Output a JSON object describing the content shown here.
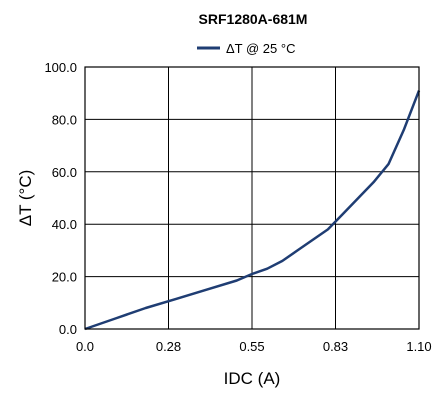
{
  "chart_data": {
    "type": "line",
    "title": "SRF1280A-681M",
    "xlabel": "IDC (A)",
    "ylabel": "ΔT (°C)",
    "xlim": [
      0,
      1.1
    ],
    "ylim": [
      0,
      100
    ],
    "x_ticks": [
      "0.0",
      "0.28",
      "0.55",
      "0.83",
      "1.10"
    ],
    "x_tick_values": [
      0,
      0.275,
      0.55,
      0.825,
      1.1
    ],
    "y_ticks": [
      "0.0",
      "20.0",
      "40.0",
      "60.0",
      "80.0",
      "100.0"
    ],
    "y_tick_values": [
      0,
      20,
      40,
      60,
      80,
      100
    ],
    "grid": true,
    "legend_position": "top-center",
    "series": [
      {
        "name": "ΔT @ 25 °C",
        "color": "#1f3d73",
        "x": [
          0,
          0.1,
          0.2,
          0.3,
          0.4,
          0.5,
          0.55,
          0.6,
          0.65,
          0.7,
          0.75,
          0.8,
          0.85,
          0.9,
          0.95,
          1.0,
          1.05,
          1.1
        ],
        "y": [
          0,
          4,
          8,
          11.5,
          15,
          18.5,
          21,
          23,
          26,
          30,
          34,
          38,
          44,
          50,
          56,
          63,
          76,
          91
        ]
      }
    ]
  }
}
